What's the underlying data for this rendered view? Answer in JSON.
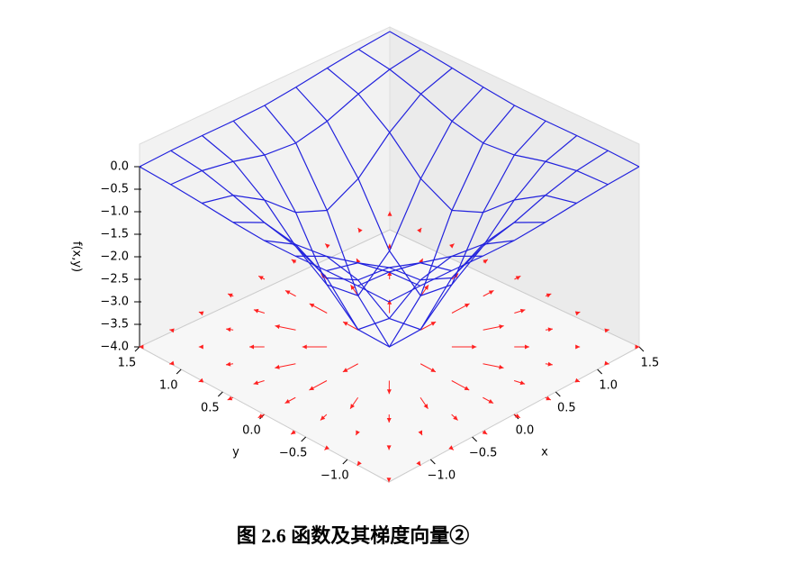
{
  "chart_data": {
    "type": "surface",
    "xlabel": "x",
    "ylabel": "y",
    "zlabel": "f(x,y)",
    "x": [
      -1.5,
      -1.125,
      -0.75,
      -0.375,
      0,
      0.375,
      0.75,
      1.125,
      1.5
    ],
    "y": [
      -1.5,
      -1.125,
      -0.75,
      -0.375,
      0,
      0.375,
      0.75,
      1.125,
      1.5
    ],
    "z": [
      [
        0,
        -0.02,
        -0.06,
        -0.11,
        -0.14,
        -0.11,
        -0.06,
        -0.02,
        0
      ],
      [
        -0.02,
        -0.09,
        -0.26,
        -0.49,
        -0.6,
        -0.49,
        -0.26,
        -0.09,
        -0.02
      ],
      [
        -0.06,
        -0.26,
        -0.74,
        -1.39,
        -1.72,
        -1.39,
        -0.74,
        -0.26,
        -0.06
      ],
      [
        -0.11,
        -0.49,
        -1.39,
        -2.62,
        -3.24,
        -2.62,
        -1.39,
        -0.49,
        -0.11
      ],
      [
        -0.14,
        -0.6,
        -1.72,
        -3.24,
        -4,
        -3.24,
        -1.72,
        -0.6,
        -0.14
      ],
      [
        -0.11,
        -0.49,
        -1.39,
        -2.62,
        -3.24,
        -2.62,
        -1.39,
        -0.49,
        -0.11
      ],
      [
        -0.06,
        -0.26,
        -0.74,
        -1.39,
        -1.72,
        -1.39,
        -0.74,
        -0.26,
        -0.06
      ],
      [
        -0.02,
        -0.09,
        -0.26,
        -0.49,
        -0.6,
        -0.49,
        -0.26,
        -0.09,
        -0.02
      ],
      [
        0,
        -0.02,
        -0.06,
        -0.11,
        -0.14,
        -0.11,
        -0.06,
        -0.02,
        0
      ]
    ],
    "xlim": [
      -1.5,
      1.5
    ],
    "ylim": [
      -1.5,
      1.5
    ],
    "zlim": [
      -4,
      0
    ],
    "xticks": [
      {
        "value": -1,
        "label": "−1.0"
      },
      {
        "value": -0.5,
        "label": "−0.5"
      },
      {
        "value": 0,
        "label": "0.0"
      },
      0.5,
      {
        "value": 1,
        "label": "1.0"
      },
      1.5
    ],
    "yticks": [
      {
        "value": -1,
        "label": "−1.0"
      },
      {
        "value": -0.5,
        "label": "−0.5"
      },
      {
        "value": 0,
        "label": "0.0"
      },
      0.5,
      {
        "value": 1,
        "label": "1.0"
      },
      1.5
    ],
    "zticks": [
      {
        "value": 0,
        "label": "0.0"
      },
      {
        "value": -0.5,
        "label": "−0.5"
      },
      {
        "value": -1,
        "label": "−1.0"
      },
      {
        "value": -1.5,
        "label": "−1.5"
      },
      {
        "value": -2,
        "label": "−2.0"
      },
      {
        "value": -2.5,
        "label": "−2.5"
      },
      {
        "value": -3,
        "label": "−3.0"
      },
      {
        "value": -3.5,
        "label": "−3.5"
      },
      {
        "value": -4,
        "label": "−4.0"
      }
    ],
    "color": "#2222dd",
    "arrow_color": "#ff2020"
  },
  "caption": "图 2.6  函数及其梯度向量②"
}
